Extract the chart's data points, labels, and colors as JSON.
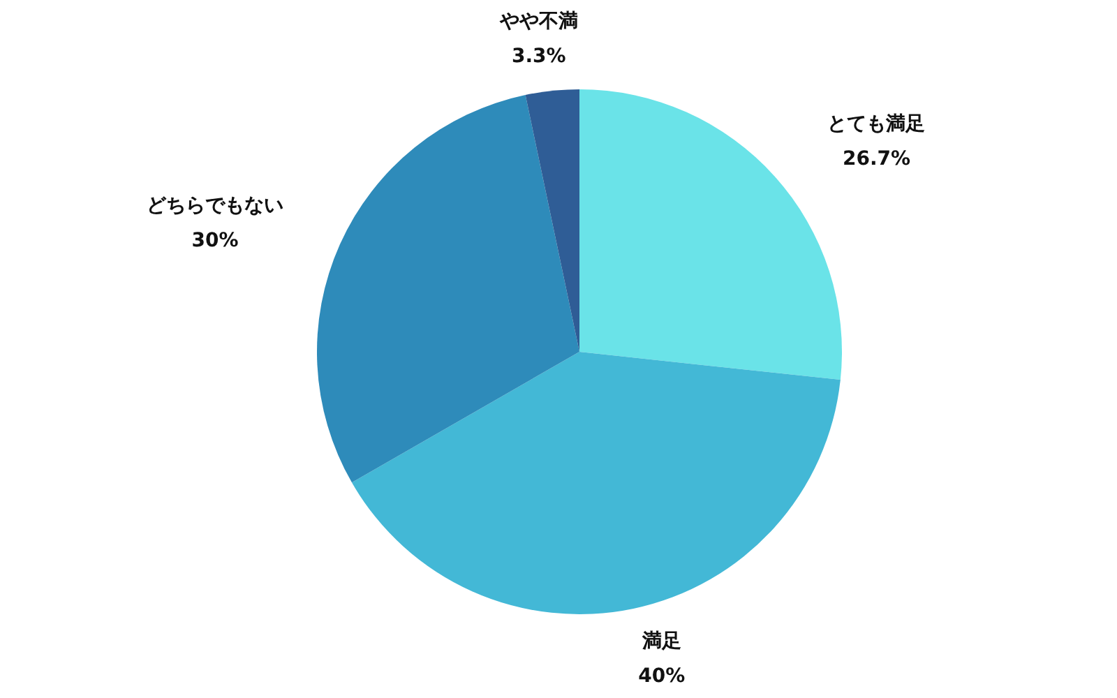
{
  "chart_data": {
    "type": "pie",
    "categories": [
      "とても満足",
      "満足",
      "どちらでもない",
      "やや不満"
    ],
    "values": [
      26.7,
      40,
      30,
      3.3
    ],
    "colors": [
      "#6ae3e8",
      "#43b8d6",
      "#2e8bba",
      "#2f5d96"
    ],
    "value_labels": [
      "26.7%",
      "40%",
      "30%",
      "3.3%"
    ]
  }
}
